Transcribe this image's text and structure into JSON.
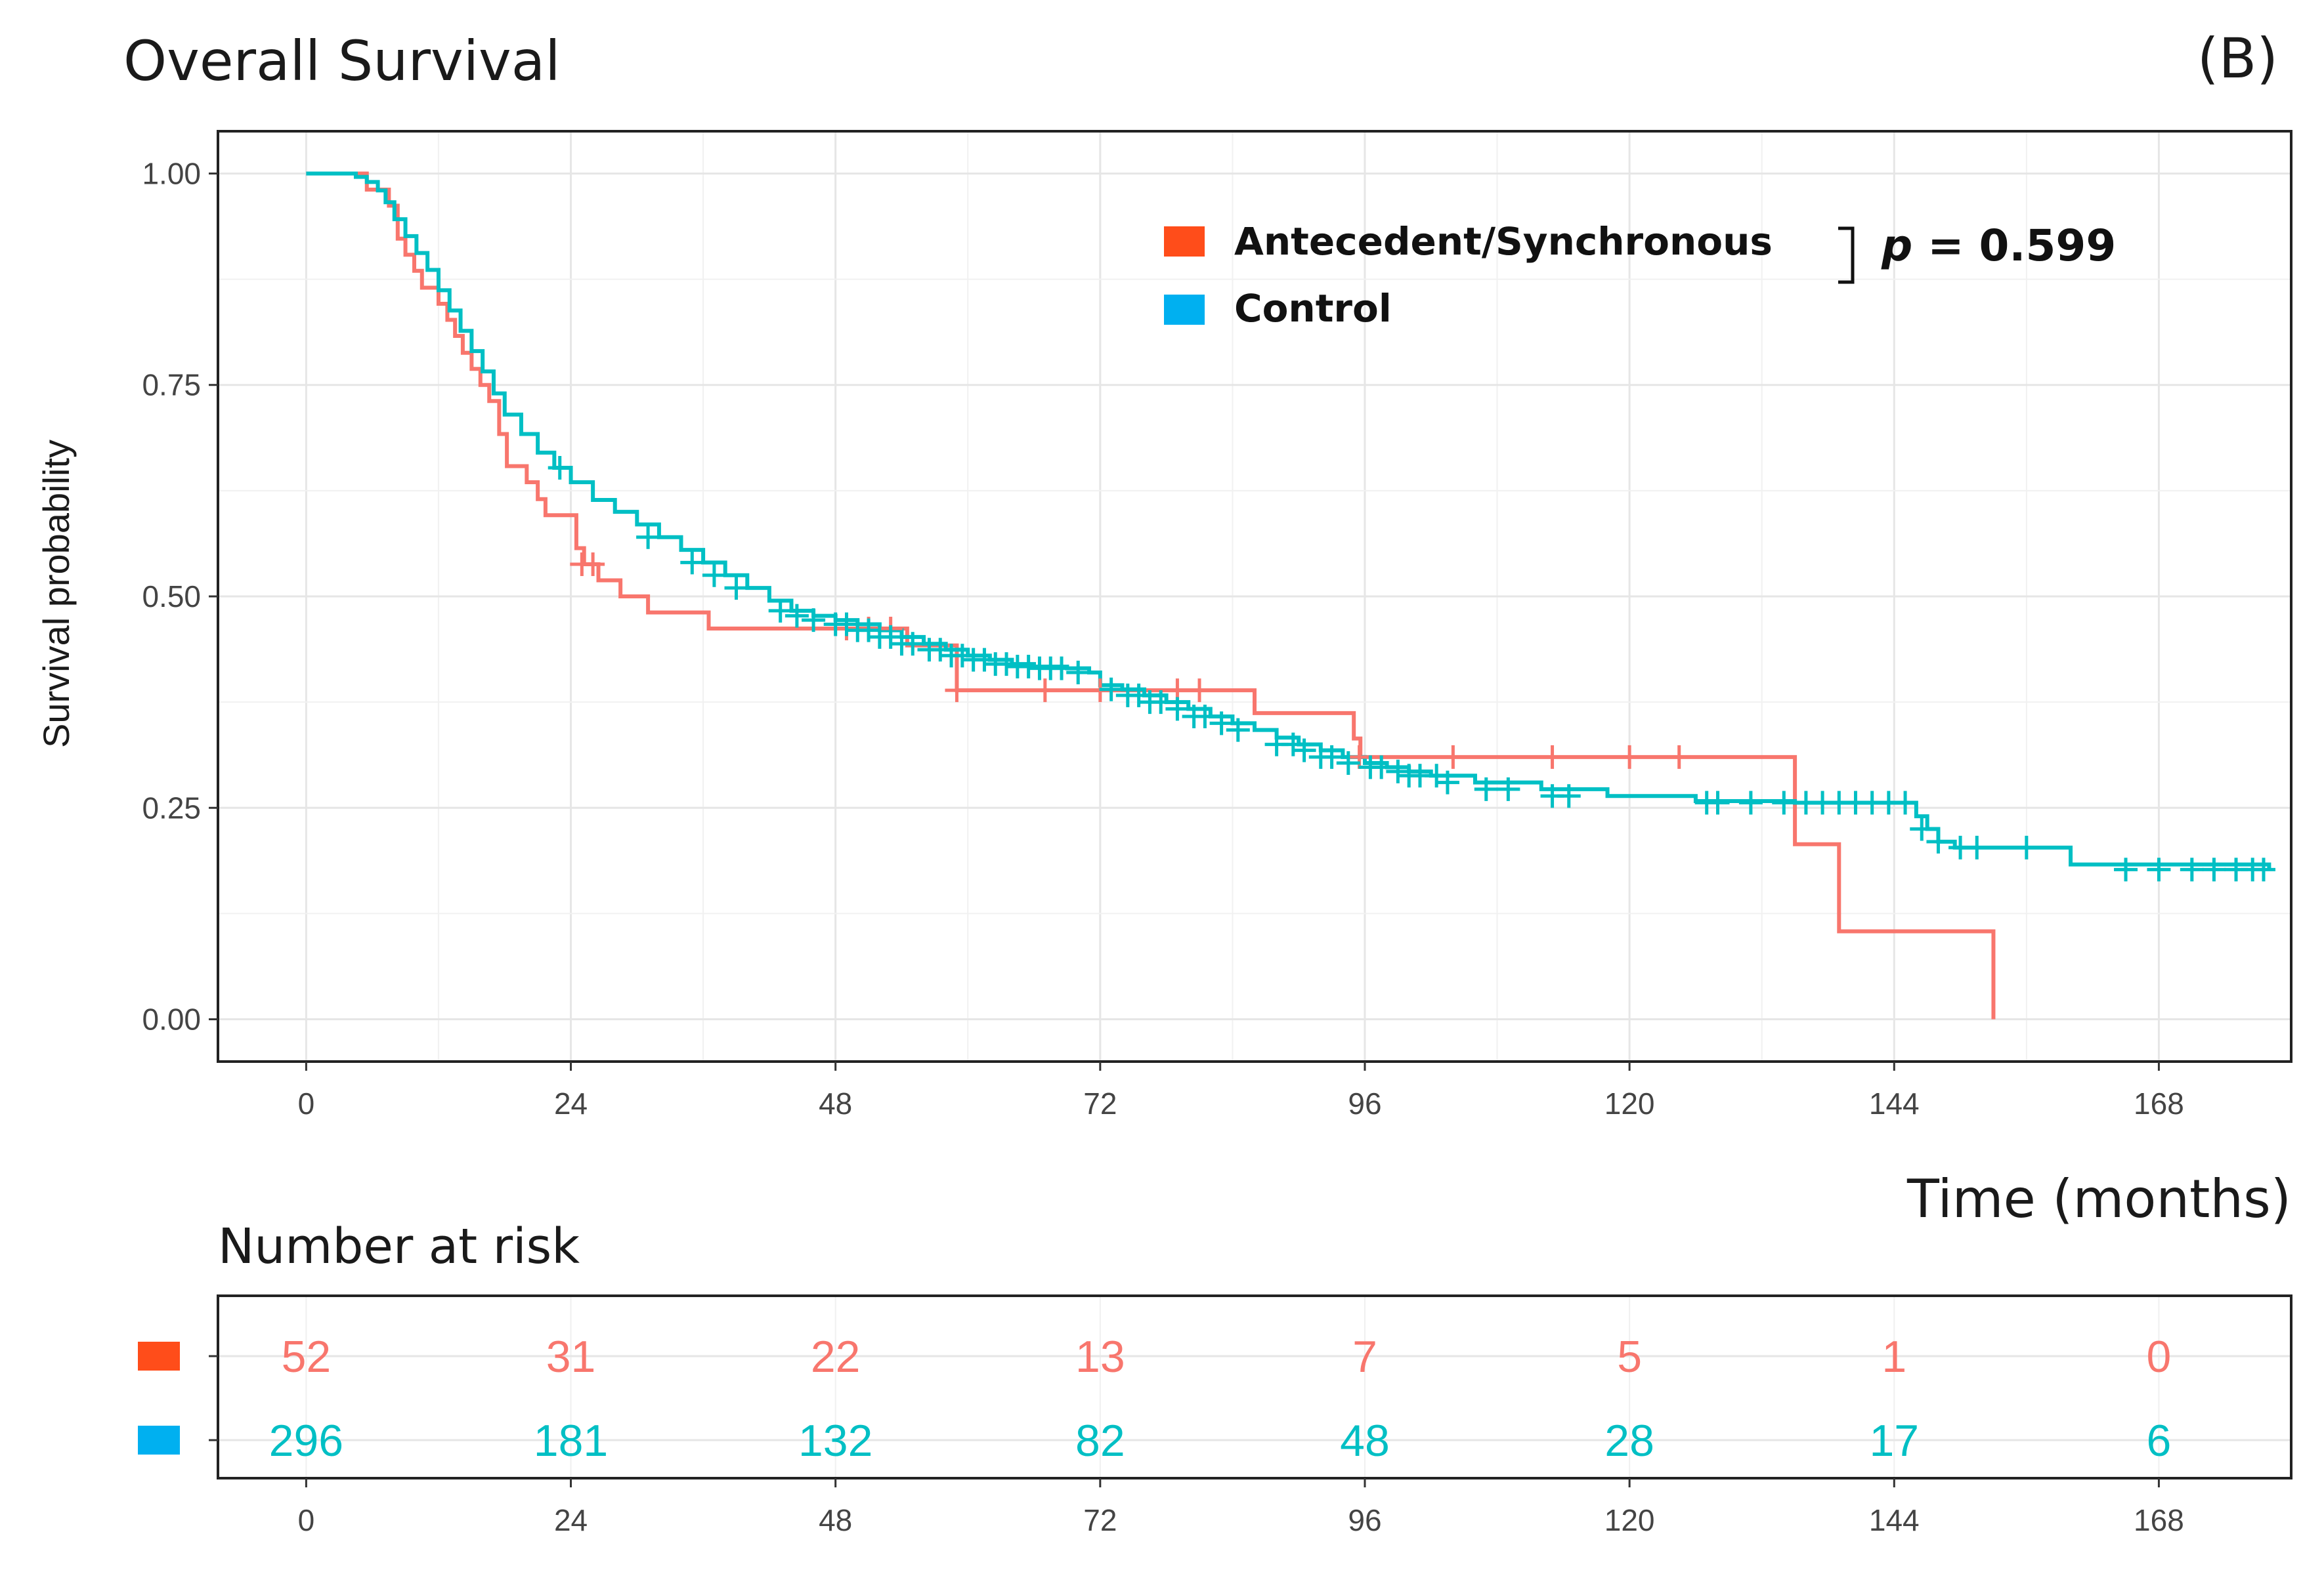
{
  "chart_data": {
    "type": "line",
    "subtype": "kaplan-meier",
    "title": "Overall Survival",
    "panel_label": "(B)",
    "xlabel": "Time (months)",
    "ylabel": "Survival probability",
    "xlim": [
      -8,
      180
    ],
    "ylim": [
      -0.05,
      1.05
    ],
    "x_ticks": [
      0,
      24,
      48,
      72,
      96,
      120,
      144,
      168
    ],
    "x_tick_labels": [
      "0",
      "24",
      "48",
      "72",
      "96",
      "120",
      "144",
      "168"
    ],
    "y_ticks": [
      0,
      0.25,
      0.5,
      0.75,
      1.0
    ],
    "y_tick_labels": [
      "0.00",
      "0.25",
      "0.50",
      "0.75",
      "1.00"
    ],
    "grid": true,
    "legend_position": "top-center",
    "p_value": {
      "prefix": "p",
      "text": " = 0.599"
    },
    "series": [
      {
        "name": "Antecedent/Synchronous",
        "color": "#f8766d",
        "legend_color": "#ff4d1a",
        "steps": [
          [
            0,
            1.0
          ],
          [
            5,
            1.0
          ],
          [
            5.5,
            0.981
          ],
          [
            7.5,
            0.962
          ],
          [
            8.3,
            0.923
          ],
          [
            9,
            0.904
          ],
          [
            9.8,
            0.885
          ],
          [
            10.5,
            0.865
          ],
          [
            12,
            0.846
          ],
          [
            12.8,
            0.827
          ],
          [
            13.5,
            0.808
          ],
          [
            14.2,
            0.788
          ],
          [
            15,
            0.769
          ],
          [
            15.8,
            0.75
          ],
          [
            16.6,
            0.731
          ],
          [
            17.5,
            0.692
          ],
          [
            18.2,
            0.654
          ],
          [
            20,
            0.635
          ],
          [
            21,
            0.615
          ],
          [
            21.7,
            0.596
          ],
          [
            24.5,
            0.557
          ],
          [
            25.2,
            0.538
          ],
          [
            26.5,
            0.519
          ],
          [
            28.5,
            0.5
          ],
          [
            31,
            0.481
          ],
          [
            36.5,
            0.462
          ],
          [
            54.5,
            0.442
          ],
          [
            59,
            0.389
          ],
          [
            86,
            0.362
          ],
          [
            95,
            0.332
          ],
          [
            95.6,
            0.31
          ],
          [
            135,
            0.207
          ],
          [
            139,
            0.104
          ],
          [
            153,
            0.0
          ]
        ],
        "end_x": 153,
        "censored": [
          [
            25,
            0.538
          ],
          [
            26,
            0.538
          ],
          [
            49,
            0.462
          ],
          [
            51,
            0.462
          ],
          [
            53,
            0.462
          ],
          [
            59,
            0.389
          ],
          [
            67,
            0.389
          ],
          [
            72,
            0.389
          ],
          [
            79,
            0.389
          ],
          [
            81,
            0.389
          ],
          [
            95.5,
            0.31
          ],
          [
            104,
            0.31
          ],
          [
            113,
            0.31
          ],
          [
            120,
            0.31
          ],
          [
            124.5,
            0.31
          ]
        ]
      },
      {
        "name": "Control",
        "color": "#00bfc4",
        "legend_color": "#00b0f0",
        "steps": [
          [
            0,
            1.0
          ],
          [
            4.5,
            0.996
          ],
          [
            5.5,
            0.99
          ],
          [
            6.5,
            0.98
          ],
          [
            7.2,
            0.966
          ],
          [
            8,
            0.946
          ],
          [
            9,
            0.926
          ],
          [
            10,
            0.906
          ],
          [
            11,
            0.886
          ],
          [
            12,
            0.862
          ],
          [
            13,
            0.838
          ],
          [
            14,
            0.814
          ],
          [
            15,
            0.79
          ],
          [
            16,
            0.766
          ],
          [
            17,
            0.74
          ],
          [
            18,
            0.715
          ],
          [
            19.5,
            0.692
          ],
          [
            21,
            0.67
          ],
          [
            22.5,
            0.652
          ],
          [
            24,
            0.635
          ],
          [
            26,
            0.614
          ],
          [
            28,
            0.6
          ],
          [
            30,
            0.585
          ],
          [
            32,
            0.57
          ],
          [
            34,
            0.555
          ],
          [
            36,
            0.54
          ],
          [
            38,
            0.525
          ],
          [
            40,
            0.51
          ],
          [
            42,
            0.495
          ],
          [
            44,
            0.483
          ],
          [
            46,
            0.477
          ],
          [
            48,
            0.472
          ],
          [
            50,
            0.467
          ],
          [
            52,
            0.46
          ],
          [
            54,
            0.452
          ],
          [
            56,
            0.444
          ],
          [
            58,
            0.437
          ],
          [
            60,
            0.43
          ],
          [
            62,
            0.425
          ],
          [
            64,
            0.42
          ],
          [
            66,
            0.417
          ],
          [
            69,
            0.415
          ],
          [
            71,
            0.41
          ],
          [
            72,
            0.395
          ],
          [
            74,
            0.39
          ],
          [
            76,
            0.383
          ],
          [
            78,
            0.375
          ],
          [
            80,
            0.367
          ],
          [
            82,
            0.358
          ],
          [
            84,
            0.35
          ],
          [
            86,
            0.342
          ],
          [
            88,
            0.333
          ],
          [
            90,
            0.325
          ],
          [
            92,
            0.318
          ],
          [
            94,
            0.31
          ],
          [
            96,
            0.303
          ],
          [
            98,
            0.298
          ],
          [
            100,
            0.293
          ],
          [
            102,
            0.288
          ],
          [
            106,
            0.28
          ],
          [
            112,
            0.272
          ],
          [
            118,
            0.264
          ],
          [
            126,
            0.258
          ],
          [
            135,
            0.256
          ],
          [
            146,
            0.24
          ],
          [
            147,
            0.225
          ],
          [
            148,
            0.21
          ],
          [
            149.5,
            0.203
          ],
          [
            160,
            0.183
          ],
          [
            178,
            0.177
          ]
        ],
        "end_x": 178,
        "censored": [
          [
            23,
            0.652
          ],
          [
            31,
            0.57
          ],
          [
            35,
            0.54
          ],
          [
            37,
            0.525
          ],
          [
            39,
            0.51
          ],
          [
            43,
            0.483
          ],
          [
            44.5,
            0.477
          ],
          [
            46,
            0.472
          ],
          [
            48,
            0.467
          ],
          [
            49,
            0.467
          ],
          [
            50,
            0.46
          ],
          [
            51,
            0.46
          ],
          [
            52,
            0.452
          ],
          [
            53,
            0.452
          ],
          [
            54,
            0.444
          ],
          [
            55,
            0.444
          ],
          [
            56.5,
            0.437
          ],
          [
            57.5,
            0.437
          ],
          [
            58.5,
            0.43
          ],
          [
            59.5,
            0.43
          ],
          [
            60.5,
            0.425
          ],
          [
            61.5,
            0.425
          ],
          [
            62.5,
            0.42
          ],
          [
            63.5,
            0.42
          ],
          [
            64.5,
            0.417
          ],
          [
            65.5,
            0.417
          ],
          [
            66.5,
            0.415
          ],
          [
            67.5,
            0.415
          ],
          [
            68.5,
            0.415
          ],
          [
            70,
            0.41
          ],
          [
            73,
            0.39
          ],
          [
            74.5,
            0.383
          ],
          [
            75.5,
            0.383
          ],
          [
            76.5,
            0.375
          ],
          [
            77.5,
            0.375
          ],
          [
            79,
            0.367
          ],
          [
            80.5,
            0.358
          ],
          [
            81.5,
            0.358
          ],
          [
            83,
            0.35
          ],
          [
            84.5,
            0.342
          ],
          [
            88,
            0.325
          ],
          [
            89.5,
            0.325
          ],
          [
            90.5,
            0.318
          ],
          [
            92,
            0.31
          ],
          [
            93,
            0.31
          ],
          [
            94.5,
            0.303
          ],
          [
            96.5,
            0.298
          ],
          [
            97.5,
            0.298
          ],
          [
            99,
            0.293
          ],
          [
            100,
            0.288
          ],
          [
            101,
            0.288
          ],
          [
            102.5,
            0.288
          ],
          [
            103.5,
            0.28
          ],
          [
            107,
            0.272
          ],
          [
            109,
            0.272
          ],
          [
            113,
            0.264
          ],
          [
            114.5,
            0.264
          ],
          [
            127,
            0.256
          ],
          [
            128,
            0.256
          ],
          [
            131,
            0.256
          ],
          [
            134,
            0.256
          ],
          [
            136,
            0.256
          ],
          [
            137.5,
            0.256
          ],
          [
            139,
            0.256
          ],
          [
            140.5,
            0.256
          ],
          [
            142,
            0.256
          ],
          [
            143.5,
            0.256
          ],
          [
            145,
            0.256
          ],
          [
            146.5,
            0.225
          ],
          [
            148,
            0.21
          ],
          [
            150,
            0.203
          ],
          [
            151.5,
            0.203
          ],
          [
            156,
            0.203
          ],
          [
            165,
            0.177
          ],
          [
            168,
            0.177
          ],
          [
            171,
            0.177
          ],
          [
            173,
            0.177
          ],
          [
            175,
            0.177
          ],
          [
            176.5,
            0.177
          ],
          [
            177.5,
            0.177
          ]
        ]
      }
    ],
    "risk_table": {
      "title": "Number at risk",
      "times": [
        0,
        24,
        48,
        72,
        96,
        120,
        144,
        168
      ],
      "rows": [
        {
          "group": "Antecedent/Synchronous",
          "color": "#f8766d",
          "legend_color": "#ff4d1a",
          "values": [
            "52",
            "31",
            "22",
            "13",
            "7",
            "5",
            "1",
            "0"
          ]
        },
        {
          "group": "Control",
          "color": "#00bfc4",
          "legend_color": "#00b0f0",
          "values": [
            "296",
            "181",
            "132",
            "82",
            "48",
            "28",
            "17",
            "6"
          ]
        }
      ]
    }
  }
}
